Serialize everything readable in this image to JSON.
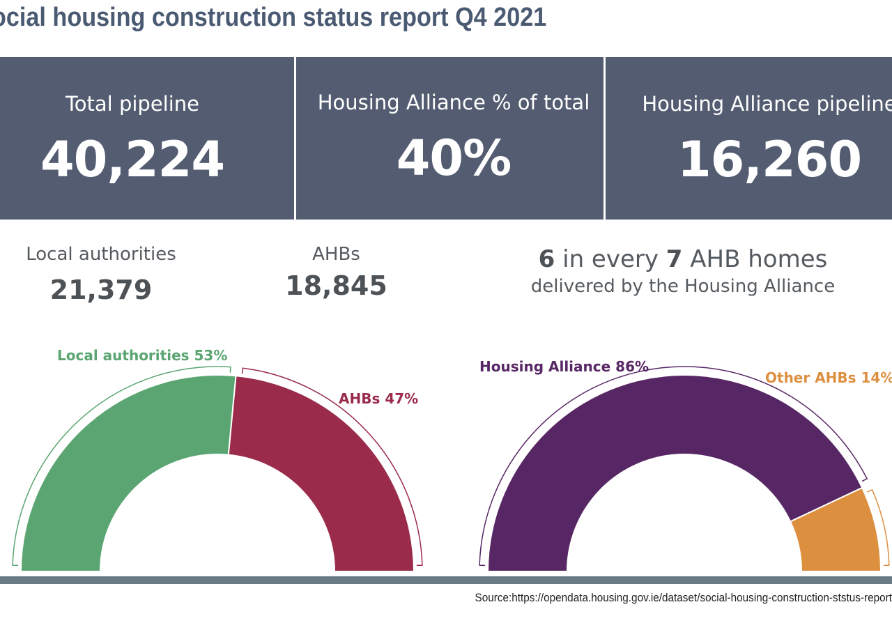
{
  "title": "ocial housing construction status report Q4 2021",
  "kpis": [
    {
      "label": "Total pipeline",
      "value": "40,224"
    },
    {
      "label": "Housing Alliance % of total",
      "value": "40%"
    },
    {
      "label": "Housing Alliance pipeline",
      "value": "16,260"
    }
  ],
  "breakdown": [
    {
      "label": "Local authorities",
      "value": "21,379"
    },
    {
      "label": "AHBs",
      "value": "18,845"
    }
  ],
  "ratio": {
    "num": "6",
    "text1": "in every",
    "den": "7",
    "text2": "AHB homes",
    "line2": "delivered by the Housing Alliance"
  },
  "chart_data": [
    {
      "type": "pie",
      "style": "semi-donut",
      "slices": [
        {
          "label": "Local authorities 53%",
          "value": 53,
          "color": "#5aa571"
        },
        {
          "label": "AHBs 47%",
          "value": 47,
          "color": "#9a2b4b"
        }
      ]
    },
    {
      "type": "pie",
      "style": "semi-donut",
      "slices": [
        {
          "label": "Housing Alliance 86%",
          "value": 86,
          "color": "#572664"
        },
        {
          "label": "Other AHBs 14%",
          "value": 14,
          "color": "#dd8f40"
        }
      ]
    }
  ],
  "source": "Source:https://opendata.housing.gov.ie/dataset/social-housing-construction-ststus-report"
}
